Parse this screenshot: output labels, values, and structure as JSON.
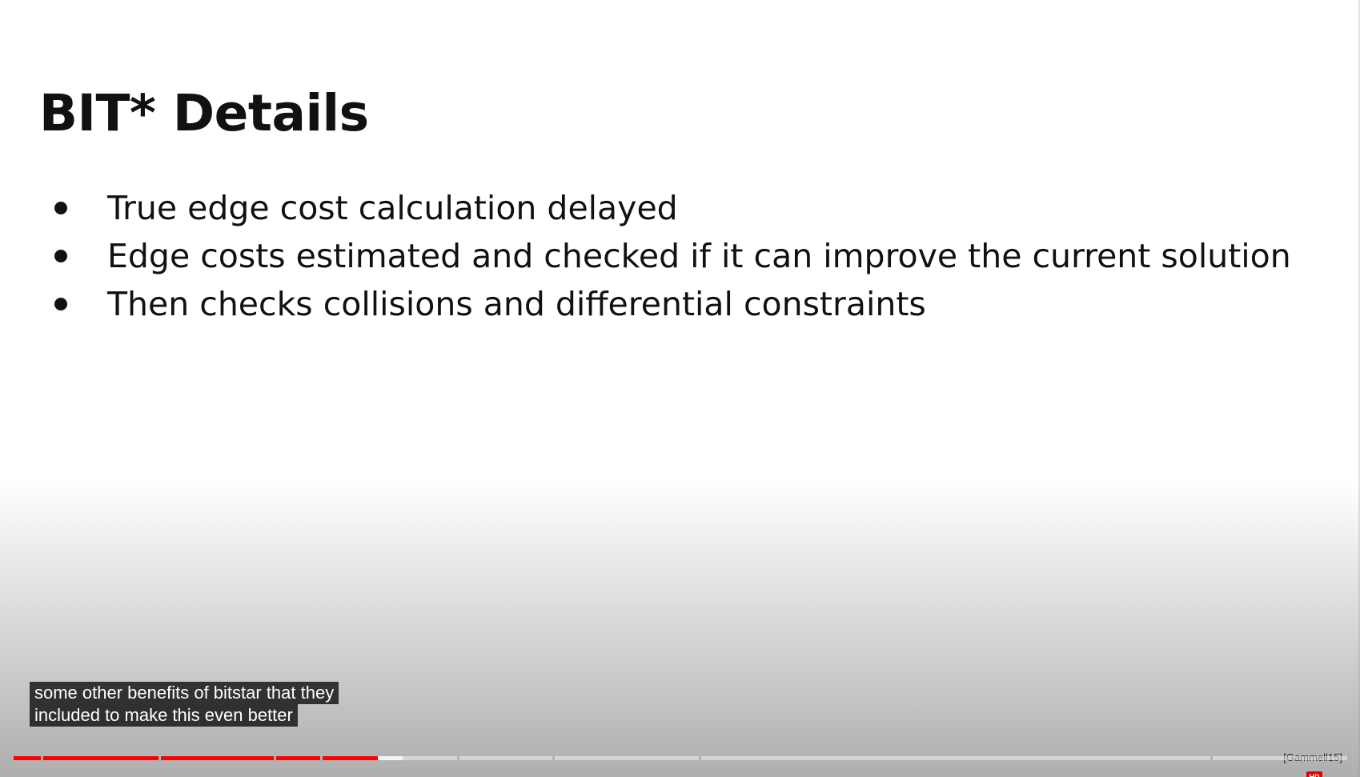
{
  "slide": {
    "title": "BIT* Details",
    "bullets": [
      "True edge cost calculation delayed",
      "Edge costs estimated and checked if it can improve the current solution",
      "Then checks collisions and differential constraints"
    ],
    "citation": "[Gammell15]"
  },
  "captions": {
    "line1": "some other benefits of bitstar that they",
    "line2": "included to make this even better"
  },
  "player": {
    "progress_played_fraction": 0.273,
    "progress_buffered_fraction": 0.292,
    "quality_badge": "HD",
    "accent_color": "#ff0000"
  }
}
